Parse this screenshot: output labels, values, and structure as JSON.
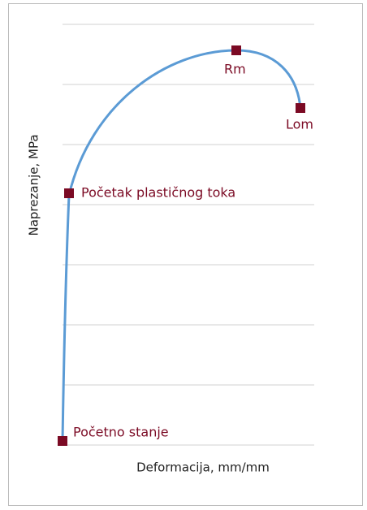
{
  "axes": {
    "x_label": "Deformacija, mm/mm",
    "y_label": "Naprezanje, MPa"
  },
  "points": [
    {
      "label": "Početno stanje"
    },
    {
      "label": "Početak plastičnog toka"
    },
    {
      "label": "Rm"
    },
    {
      "label": "Lom"
    }
  ]
}
